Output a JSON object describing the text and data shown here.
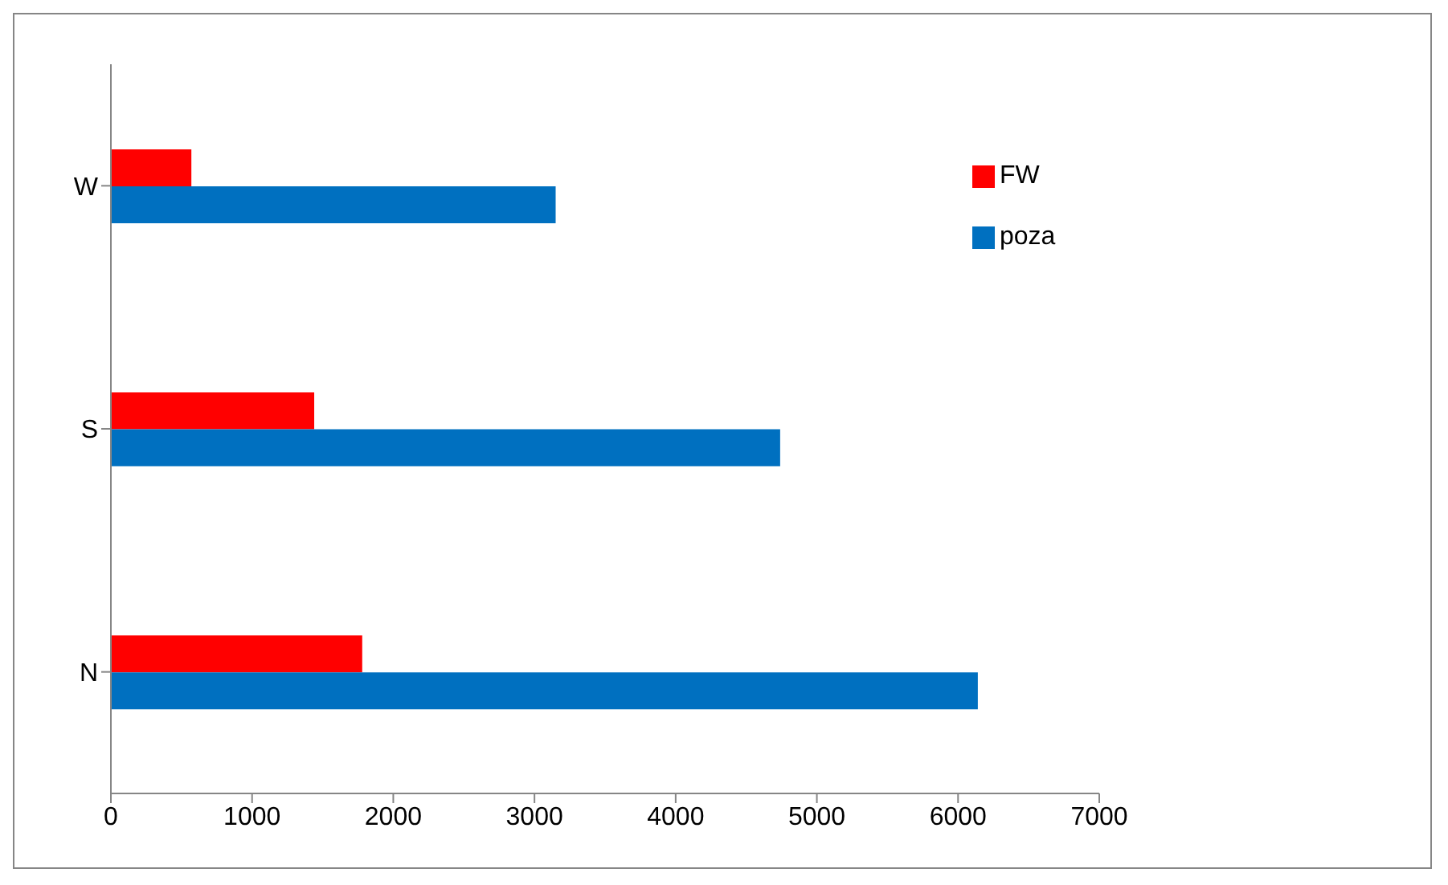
{
  "chart_data": {
    "type": "bar",
    "orientation": "horizontal",
    "categories": [
      "W",
      "S",
      "N"
    ],
    "series": [
      {
        "name": "FW",
        "color": "#ff0000",
        "values": [
          570,
          1440,
          1780
        ]
      },
      {
        "name": "poza",
        "color": "#0070c0",
        "values": [
          3150,
          4740,
          6140
        ]
      }
    ],
    "xlim": [
      0,
      7000
    ],
    "xticks": [
      0,
      1000,
      2000,
      3000,
      4000,
      5000,
      6000,
      7000
    ],
    "grid": false,
    "legend": "top right"
  }
}
